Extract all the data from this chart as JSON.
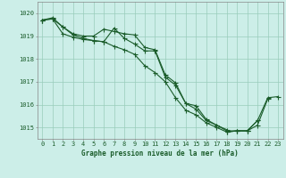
{
  "background_color": "#cceee8",
  "grid_color": "#99ccbb",
  "line_color": "#1a5c2a",
  "marker_color": "#1a5c2a",
  "xlabel": "Graphe pression niveau de la mer (hPa)",
  "xlabel_fontsize": 5.5,
  "tick_label_fontsize": 5.0,
  "ylim": [
    1014.5,
    1020.5
  ],
  "xlim": [
    -0.5,
    23.5
  ],
  "yticks": [
    1015,
    1016,
    1017,
    1018,
    1019,
    1020
  ],
  "xticks": [
    0,
    1,
    2,
    3,
    4,
    5,
    6,
    7,
    8,
    9,
    10,
    11,
    12,
    13,
    14,
    15,
    16,
    17,
    18,
    19,
    20,
    21,
    22,
    23
  ],
  "series1": {
    "x": [
      0,
      1,
      2,
      3,
      4,
      5,
      6,
      7,
      8,
      9,
      10,
      11,
      12,
      13,
      14,
      15,
      16,
      17,
      18,
      19,
      20,
      21
    ],
    "y": [
      1019.7,
      1019.8,
      1019.4,
      1019.1,
      1019.0,
      1019.0,
      1019.3,
      1019.2,
      1019.1,
      1019.05,
      1018.5,
      1018.4,
      1017.3,
      1016.95,
      1016.05,
      1015.8,
      1015.3,
      1015.1,
      1014.85,
      1014.85,
      1014.85,
      1015.3
    ]
  },
  "series2": {
    "x": [
      0,
      1,
      2,
      3,
      4,
      5,
      6,
      7,
      8,
      9,
      10,
      11,
      12,
      13,
      14,
      15,
      16,
      17,
      18
    ],
    "y": [
      1019.7,
      1019.75,
      1019.1,
      1018.95,
      1018.85,
      1018.8,
      1018.75,
      1019.35,
      1018.9,
      1018.65,
      1018.35,
      1018.35,
      1017.2,
      1016.85,
      1016.05,
      1015.95,
      1015.35,
      1015.1,
      1014.9
    ]
  },
  "series3": {
    "x": [
      0,
      1,
      2,
      3,
      4,
      5,
      6,
      7,
      8,
      9,
      10,
      11,
      12,
      13,
      14,
      15,
      16,
      17,
      18,
      19,
      20,
      21,
      22
    ],
    "y": [
      1019.7,
      1019.75,
      1019.4,
      1019.05,
      1018.9,
      1018.8,
      1018.75,
      1018.55,
      1018.4,
      1018.2,
      1017.7,
      1017.4,
      1017.0,
      1016.3,
      1015.75,
      1015.55,
      1015.2,
      1015.0,
      1014.8,
      1014.85,
      1014.85,
      1015.1,
      1016.25
    ]
  },
  "series4": {
    "x": [
      18,
      19,
      20,
      21,
      22,
      23
    ],
    "y": [
      1014.8,
      1014.85,
      1014.85,
      1015.3,
      1016.3,
      1016.35
    ]
  }
}
